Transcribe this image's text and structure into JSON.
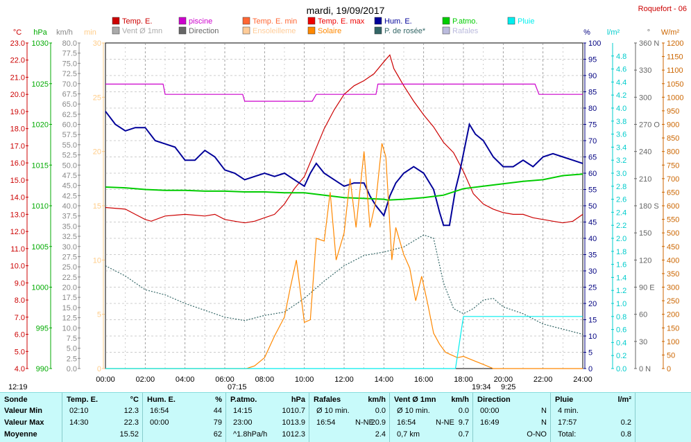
{
  "chart_data": {
    "type": "line",
    "title": "mardi, 19/09/2017",
    "station": "Roquefort - 06",
    "x_ticks": [
      "00:00",
      "02:00",
      "04:00",
      "06:00",
      "08:00",
      "10:00",
      "12:00",
      "14:00",
      "16:00",
      "18:00",
      "20:00",
      "22:00",
      "24:00"
    ],
    "xlim": [
      0,
      24
    ],
    "sun_marks": {
      "rise": "07:15",
      "set": "19:34",
      "sunrise_left": "12:19",
      "moon": "9:25"
    },
    "axes": [
      {
        "id": "temp",
        "unit": "°C",
        "color": "#cc0000",
        "ylim": [
          4.0,
          23.0
        ],
        "ticks": [
          "23.0",
          "22.0",
          "21.0",
          "20.0",
          "19.0",
          "18.0",
          "17.0",
          "16.0",
          "15.0",
          "14.0",
          "13.0",
          "12.0",
          "11.0",
          "10.0",
          "9.0",
          "8.0",
          "7.0",
          "6.0",
          "5.0",
          "4.0"
        ]
      },
      {
        "id": "press",
        "unit": "hPa",
        "color": "#00aa00",
        "ylim": [
          990,
          1030
        ],
        "ticks": [
          "1030",
          "1025",
          "1020",
          "1015",
          "1010",
          "1005",
          "1000",
          "995",
          "990"
        ]
      },
      {
        "id": "wind",
        "unit": "km/h",
        "color": "#888888",
        "ylim": [
          0,
          80
        ],
        "ticks": [
          "80.0",
          "77.5",
          "75.0",
          "72.5",
          "70.0",
          "67.5",
          "65.0",
          "62.5",
          "60.0",
          "57.5",
          "55.0",
          "52.5",
          "50.0",
          "47.5",
          "45.0",
          "42.5",
          "40.0",
          "37.5",
          "35.0",
          "32.5",
          "30.0",
          "27.5",
          "25.0",
          "22.5",
          "20.0",
          "17.5",
          "15.0",
          "12.5",
          "10.0",
          "7.5",
          "5.0",
          "2.5",
          "0.0"
        ]
      },
      {
        "id": "minutes",
        "unit": "min",
        "color": "#ffcc88",
        "ylim": [
          0,
          30
        ],
        "ticks": [
          "30",
          "25",
          "20",
          "15",
          "10",
          "5",
          "0"
        ]
      },
      {
        "id": "hum",
        "unit": "%",
        "color": "#000080",
        "ylim": [
          0,
          100
        ],
        "ticks": [
          "100",
          "95",
          "90",
          "85",
          "80",
          "75",
          "70",
          "65",
          "60",
          "55",
          "50",
          "45",
          "40",
          "35",
          "30",
          "25",
          "20",
          "15",
          "10",
          "5",
          "0"
        ]
      },
      {
        "id": "rain",
        "unit": "l/m²",
        "color": "#00cccc",
        "ylim": [
          0,
          5
        ],
        "ticks": [
          "4.8",
          "4.6",
          "4.4",
          "4.2",
          "4.0",
          "3.8",
          "3.6",
          "3.4",
          "3.2",
          "3.0",
          "2.8",
          "2.6",
          "2.4",
          "2.2",
          "2.0",
          "1.8",
          "1.6",
          "1.4",
          "1.2",
          "1.0",
          "0.8",
          "0.6",
          "0.4",
          "0.2",
          "0.0"
        ]
      },
      {
        "id": "dir",
        "unit": "°",
        "color": "#666666",
        "ylim": [
          0,
          360
        ],
        "ticks": [
          "360 N",
          "330",
          "300",
          "270 O",
          "240",
          "210",
          "180 S",
          "150",
          "120",
          "90 E",
          "60",
          "30",
          "0 N"
        ]
      },
      {
        "id": "solar",
        "unit": "W/m²",
        "color": "#cc6600",
        "ylim": [
          0,
          1200
        ],
        "ticks": [
          "1200",
          "1150",
          "1100",
          "1050",
          "1000",
          "950",
          "900",
          "850",
          "800",
          "750",
          "700",
          "650",
          "600",
          "550",
          "500",
          "450",
          "400",
          "350",
          "300",
          "250",
          "200",
          "150",
          "100",
          "50",
          "0"
        ]
      }
    ],
    "legend": [
      {
        "name": "Temp. E.",
        "color": "#cc0000"
      },
      {
        "name": "piscine",
        "color": "#cc00cc"
      },
      {
        "name": "Temp. E. min",
        "color": "#ff6633"
      },
      {
        "name": "Temp. E. max",
        "color": "#ee0000"
      },
      {
        "name": "Hum. E.",
        "color": "#000099"
      },
      {
        "name": "P.atmo.",
        "color": "#00cc00"
      },
      {
        "name": "Pluie",
        "color": "#00eeee"
      },
      {
        "name": "Vent Ø 1mn",
        "color": "#aaaaaa"
      },
      {
        "name": "Direction",
        "color": "#666666"
      },
      {
        "name": "Ensoleilleme",
        "color": "#ffcc99"
      },
      {
        "name": "Solaire",
        "color": "#ff8800"
      },
      {
        "name": "P. de rosée*",
        "color": "#336666"
      },
      {
        "name": "Rafales",
        "color": "#bbbbdd"
      }
    ],
    "series": [
      {
        "name": "Temp. E.",
        "axis": "temp",
        "color": "#cc0000",
        "x": [
          0,
          1,
          1.5,
          2,
          2.3,
          3,
          4,
          5,
          5.5,
          6,
          6.5,
          7,
          7.5,
          8,
          8.5,
          9,
          9.5,
          10,
          10.5,
          11,
          11.5,
          12,
          12.5,
          13,
          13.5,
          14,
          14.3,
          14.5,
          15,
          15.5,
          16,
          16.5,
          17,
          17.5,
          18,
          18.5,
          19,
          19.5,
          20,
          20.5,
          21,
          21.5,
          22,
          22.5,
          23,
          23.5,
          24
        ],
        "values": [
          13.4,
          13.3,
          13.0,
          12.7,
          12.6,
          12.9,
          13.0,
          12.9,
          13.0,
          12.7,
          12.6,
          12.5,
          12.6,
          12.8,
          13.0,
          13.6,
          14.5,
          15.2,
          16.6,
          18.0,
          19.1,
          20.0,
          20.5,
          20.8,
          21.2,
          21.9,
          22.3,
          21.5,
          20.5,
          19.6,
          18.8,
          18.1,
          17.2,
          16.6,
          15.5,
          14.2,
          13.6,
          13.3,
          13.1,
          13.0,
          13.0,
          12.8,
          12.7,
          12.6,
          12.5,
          12.6,
          13.0
        ]
      },
      {
        "name": "piscine",
        "axis": "temp",
        "color": "#cc00cc",
        "x": [
          0,
          2.9,
          3.0,
          6.9,
          7.0,
          10.4,
          10.6,
          13.6,
          13.7,
          21.6,
          21.8,
          24
        ],
        "values": [
          20.6,
          20.6,
          20.0,
          20.0,
          19.6,
          19.6,
          20.0,
          20.0,
          20.6,
          20.6,
          20.0,
          20.0
        ]
      },
      {
        "name": "Hum. E.",
        "axis": "hum",
        "color": "#000099",
        "x": [
          0,
          0.5,
          1,
          1.5,
          2,
          2.5,
          3,
          3.5,
          4,
          4.5,
          5,
          5.5,
          6,
          6.5,
          7,
          7.5,
          8,
          8.5,
          9,
          9.5,
          10,
          10.3,
          10.6,
          11,
          11.5,
          12,
          12.5,
          13,
          13.3,
          13.6,
          14,
          14.3,
          14.6,
          15,
          15.5,
          16,
          16.5,
          16.8,
          17,
          17.3,
          17.6,
          17.8,
          18,
          18.3,
          18.6,
          19,
          19.5,
          20,
          20.5,
          21,
          21.5,
          22,
          22.5,
          23,
          23.5,
          24
        ],
        "values": [
          79,
          75,
          73,
          74,
          74,
          70,
          69,
          68,
          64,
          64,
          67,
          65,
          61,
          60,
          58,
          59,
          60,
          59,
          60,
          58,
          56,
          60,
          63,
          60,
          58,
          56,
          57,
          57,
          53,
          50,
          47,
          53,
          57,
          60,
          62,
          60,
          55,
          48,
          44,
          44,
          55,
          60,
          66,
          75,
          72,
          70,
          65,
          62,
          62,
          64,
          62,
          65,
          66,
          65,
          64,
          63
        ]
      },
      {
        "name": "P.atmo.",
        "axis": "press",
        "color": "#00cc00",
        "x": [
          0,
          1,
          2,
          3,
          4,
          5,
          6,
          7,
          8,
          9,
          10,
          11,
          12,
          13,
          14,
          14.2,
          15,
          16,
          17,
          18,
          19,
          20,
          21,
          22,
          23,
          24
        ],
        "values": [
          1012.3,
          1012.2,
          1012.0,
          1011.9,
          1011.9,
          1011.8,
          1011.8,
          1011.7,
          1011.7,
          1011.6,
          1011.6,
          1011.3,
          1011.0,
          1010.9,
          1010.8,
          1010.7,
          1010.8,
          1011.0,
          1011.3,
          1012.1,
          1012.4,
          1012.7,
          1013.0,
          1013.2,
          1013.7,
          1013.9
        ]
      },
      {
        "name": "P. de rosée*",
        "axis": "temp",
        "color": "#336666",
        "dashed": true,
        "x": [
          0,
          1,
          2,
          3,
          4,
          5,
          6,
          7,
          8,
          9,
          10,
          11,
          12,
          13,
          14,
          15,
          16,
          16.5,
          17,
          17.5,
          18,
          18.5,
          19,
          19.5,
          20,
          21,
          22,
          23,
          24
        ],
        "values": [
          10.0,
          9.4,
          8.6,
          8.3,
          7.8,
          7.4,
          7.0,
          6.8,
          7.1,
          7.3,
          8.1,
          9.1,
          10.0,
          10.6,
          10.8,
          11.1,
          11.8,
          11.6,
          9.0,
          7.5,
          7.2,
          7.5,
          8.0,
          8.1,
          7.6,
          7.2,
          6.6,
          6.3,
          6.0
        ]
      },
      {
        "name": "Solaire",
        "axis": "solar",
        "color": "#ff8800",
        "x": [
          0,
          7.1,
          7.5,
          8,
          8.5,
          9,
          9.3,
          9.6,
          10,
          10.3,
          10.6,
          11,
          11.3,
          11.6,
          12,
          12.3,
          12.6,
          13,
          13.3,
          13.6,
          13.9,
          14.1,
          14.4,
          14.6,
          15,
          15.3,
          15.6,
          15.9,
          16.2,
          16.5,
          16.8,
          17.1,
          17.4,
          17.7,
          18,
          18.5,
          19,
          19.5,
          24
        ],
        "values": [
          0,
          0,
          10,
          40,
          120,
          190,
          300,
          400,
          170,
          180,
          480,
          470,
          650,
          400,
          500,
          700,
          520,
          800,
          520,
          620,
          830,
          780,
          400,
          520,
          420,
          370,
          250,
          340,
          240,
          130,
          90,
          60,
          50,
          40,
          45,
          30,
          15,
          0,
          0
        ]
      },
      {
        "name": "Pluie",
        "axis": "rain",
        "color": "#00eeee",
        "x": [
          0,
          17.6,
          17.7,
          17.8,
          17.9,
          18.0,
          18.1,
          24
        ],
        "values": [
          0,
          0,
          0.2,
          0.4,
          0.6,
          0.8,
          0.8,
          0.8
        ]
      }
    ]
  },
  "table": {
    "cols": [
      {
        "title": "Sonde",
        "rows": [
          "Valeur Min",
          "Valeur Max",
          "Moyenne"
        ]
      },
      {
        "title": "Temp. E.",
        "unit": "°C",
        "times": [
          "02:10",
          "14:30",
          ""
        ],
        "vals": [
          "12.3",
          "22.3",
          "15.52"
        ]
      },
      {
        "title": "Hum. E.",
        "unit": "%",
        "times": [
          "16:54",
          "00:00",
          ""
        ],
        "vals": [
          "44",
          "79",
          "62"
        ]
      },
      {
        "title": "P.atmo.",
        "unit": "hPa",
        "times": [
          "14:15",
          "23:00",
          "^1.8hPa/h"
        ],
        "vals": [
          "1010.7",
          "1013.9",
          "1012.3"
        ]
      },
      {
        "title": "Rafales",
        "unit": "km/h",
        "times": [
          "Ø 10 min.",
          "16:54",
          ""
        ],
        "mid": [
          "",
          "N-NE",
          ""
        ],
        "vals": [
          "0.0",
          "20.9",
          "2.4"
        ]
      },
      {
        "title": "Vent Ø 1mn",
        "unit": "km/h",
        "times": [
          "Ø 10 min.",
          "16:54",
          "0,7 km"
        ],
        "mid": [
          "",
          "N-NE",
          ""
        ],
        "vals": [
          "0.0",
          "9.7",
          "0.7"
        ]
      },
      {
        "title": "Direction",
        "unit": "",
        "times": [
          "00:00",
          "16:49",
          ""
        ],
        "vals": [
          "N",
          "N",
          "O-NO"
        ]
      },
      {
        "title": "Pluie",
        "unit": "l/m²",
        "times": [
          "4 min.",
          "17:57",
          "Total:"
        ],
        "vals": [
          "",
          "0.2",
          "0.8"
        ]
      }
    ]
  }
}
